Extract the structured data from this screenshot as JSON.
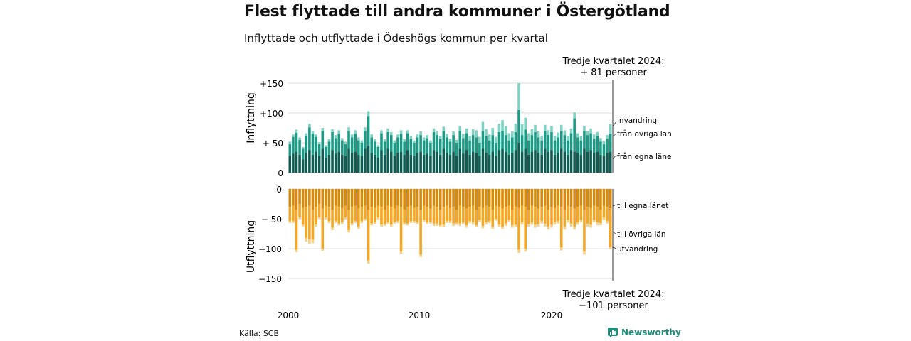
{
  "title": "Flest flyttade till andra kommuner i Östergötland",
  "subtitle": "Inflyttade och utflyttade i Ödeshögs kommun per kvartal",
  "source": "Källa: SCB",
  "brand": "Newsworthy",
  "colors": {
    "in_egna": "#0f5c52",
    "in_ovriga": "#1a9b86",
    "in_invandring": "#7fd3c2",
    "out_egna": "#d98a0a",
    "out_ovriga": "#f5a623",
    "out_utvandring": "#f7d08a",
    "brand": "#1f8f7a"
  },
  "chart_data": {
    "type": "bar",
    "stacked": true,
    "x_ticks": [
      "2000",
      "2010",
      "2020"
    ],
    "first_period": "2000Q1",
    "last_period": "2024Q3",
    "top_panel": {
      "ylabel": "Inflyttning",
      "ylim": [
        0,
        150
      ],
      "y_ticks": [
        0,
        50,
        100,
        150
      ],
      "y_tick_labels": [
        "0",
        "+ 50",
        "+100",
        "+150"
      ],
      "series": [
        {
          "name": "från egna läne",
          "values": [
            28,
            32,
            35,
            30,
            22,
            33,
            38,
            30,
            35,
            28,
            40,
            25,
            30,
            38,
            32,
            35,
            30,
            28,
            40,
            33,
            35,
            30,
            28,
            40,
            45,
            33,
            30,
            25,
            38,
            30,
            40,
            35,
            28,
            33,
            35,
            30,
            38,
            30,
            28,
            33,
            35,
            30,
            32,
            28,
            38,
            35,
            30,
            40,
            33,
            30,
            35,
            28,
            40,
            32,
            38,
            30,
            35,
            33,
            28,
            40,
            33,
            30,
            35,
            28,
            38,
            40,
            35,
            30,
            33,
            38,
            50,
            35,
            40,
            30,
            35,
            38,
            33,
            30,
            40,
            35,
            38,
            30,
            33,
            40,
            35,
            30,
            38,
            35,
            33,
            30,
            40,
            35,
            38,
            33,
            35,
            30,
            28,
            33,
            35
          ]
        },
        {
          "name": "från övriga län",
          "values": [
            20,
            28,
            32,
            25,
            18,
            28,
            38,
            35,
            25,
            20,
            30,
            18,
            22,
            30,
            26,
            30,
            24,
            20,
            30,
            26,
            30,
            24,
            22,
            30,
            50,
            26,
            22,
            18,
            28,
            22,
            28,
            28,
            22,
            26,
            30,
            22,
            28,
            26,
            22,
            26,
            28,
            24,
            26,
            22,
            30,
            28,
            26,
            30,
            26,
            22,
            28,
            22,
            30,
            26,
            28,
            24,
            28,
            26,
            22,
            30,
            28,
            24,
            28,
            22,
            30,
            30,
            28,
            24,
            26,
            30,
            55,
            28,
            32,
            24,
            28,
            30,
            26,
            24,
            30,
            28,
            30,
            24,
            26,
            30,
            28,
            24,
            28,
            56,
            26,
            24,
            30,
            28,
            28,
            24,
            26,
            22,
            20,
            24,
            30
          ]
        },
        {
          "name": "invandring",
          "values": [
            4,
            4,
            5,
            4,
            3,
            5,
            6,
            5,
            4,
            3,
            5,
            3,
            4,
            5,
            5,
            6,
            4,
            4,
            6,
            5,
            6,
            5,
            4,
            6,
            8,
            5,
            4,
            3,
            5,
            4,
            6,
            5,
            4,
            5,
            6,
            4,
            5,
            5,
            4,
            5,
            6,
            5,
            5,
            4,
            6,
            6,
            5,
            7,
            6,
            5,
            6,
            5,
            8,
            7,
            8,
            8,
            10,
            12,
            10,
            15,
            12,
            10,
            12,
            10,
            14,
            18,
            15,
            12,
            10,
            14,
            45,
            18,
            20,
            12,
            10,
            12,
            10,
            8,
            10,
            8,
            10,
            8,
            8,
            10,
            8,
            7,
            8,
            10,
            7,
            7,
            8,
            7,
            8,
            7,
            7,
            6,
            5,
            6,
            16
          ]
        }
      ]
    },
    "bottom_panel": {
      "ylabel": "Utflyttning",
      "ylim": [
        -150,
        0
      ],
      "y_ticks": [
        0,
        -50,
        -100,
        -150
      ],
      "y_tick_labels": [
        "0",
        "− 50",
        "−100",
        "−150"
      ],
      "series": [
        {
          "name": "till egna länet",
          "values": [
            -30,
            -28,
            -35,
            -25,
            -32,
            -30,
            -28,
            -35,
            -30,
            -25,
            -33,
            -28,
            -30,
            -35,
            -28,
            -30,
            -32,
            -28,
            -35,
            -30,
            -28,
            -33,
            -30,
            -28,
            -35,
            -30,
            -32,
            -28,
            -30,
            -35,
            -28,
            -30,
            -33,
            -28,
            -30,
            -35,
            -30,
            -28,
            -32,
            -30,
            -35,
            -28,
            -30,
            -33,
            -28,
            -30,
            -35,
            -30,
            -28,
            -32,
            -30,
            -35,
            -28,
            -30,
            -33,
            -30,
            -28,
            -35,
            -30,
            -32,
            -28,
            -30,
            -35,
            -28,
            -30,
            -33,
            -30,
            -28,
            -35,
            -30,
            -32,
            -28,
            -30,
            -35,
            -28,
            -30,
            -33,
            -30,
            -28,
            -35,
            -30,
            -32,
            -28,
            -30,
            -35,
            -28,
            -30,
            -33,
            -30,
            -28,
            -35,
            -30,
            -32,
            -28,
            -30,
            -35,
            -28,
            -30,
            -33
          ]
        },
        {
          "name": "till övriga län",
          "values": [
            -24,
            -26,
            -67,
            -22,
            -28,
            -52,
            -56,
            -50,
            -30,
            -22,
            -67,
            -20,
            -24,
            -30,
            -26,
            -28,
            -24,
            -20,
            -34,
            -28,
            -26,
            -30,
            -24,
            -22,
            -85,
            -28,
            -24,
            -20,
            -30,
            -24,
            -28,
            -30,
            -22,
            -26,
            -75,
            -22,
            -28,
            -26,
            -22,
            -26,
            -75,
            -24,
            -26,
            -22,
            -30,
            -28,
            -26,
            -30,
            -26,
            -22,
            -28,
            -22,
            -30,
            -26,
            -28,
            -24,
            -28,
            -26,
            -22,
            -30,
            -28,
            -24,
            -28,
            -22,
            -30,
            -30,
            -28,
            -24,
            -26,
            -30,
            -70,
            -28,
            -70,
            -24,
            -28,
            -30,
            -26,
            -24,
            -30,
            -28,
            -30,
            -24,
            -26,
            -68,
            -28,
            -24,
            -28,
            -30,
            -26,
            -24,
            -70,
            -28,
            -28,
            -24,
            -26,
            -22,
            -20,
            -24,
            -64
          ]
        },
        {
          "name": "utvandring",
          "values": [
            -3,
            -3,
            -4,
            -3,
            -3,
            -6,
            -8,
            -6,
            -3,
            -3,
            -4,
            -3,
            -3,
            -4,
            -3,
            -3,
            -3,
            -3,
            -4,
            -3,
            -3,
            -4,
            -3,
            -3,
            -5,
            -3,
            -3,
            -3,
            -3,
            -3,
            -3,
            -4,
            -3,
            -3,
            -4,
            -3,
            -3,
            -3,
            -3,
            -3,
            -4,
            -3,
            -3,
            -3,
            -4,
            -4,
            -3,
            -4,
            -3,
            -3,
            -4,
            -3,
            -4,
            -3,
            -4,
            -3,
            -4,
            -3,
            -3,
            -4,
            -4,
            -3,
            -4,
            -3,
            -4,
            -4,
            -4,
            -3,
            -4,
            -4,
            -5,
            -4,
            -5,
            -4,
            -4,
            -5,
            -4,
            -4,
            -5,
            -5,
            -5,
            -4,
            -4,
            -5,
            -5,
            -4,
            -5,
            -5,
            -4,
            -4,
            -5,
            -5,
            -5,
            -4,
            -5,
            -4,
            -4,
            -4,
            -4
          ]
        }
      ]
    },
    "annotations": {
      "top": [
        "Tredje kvartalet 2024:",
        "+ 81 personer"
      ],
      "bottom": [
        "Tredje kvartalet 2024:",
        "−101 personer"
      ]
    },
    "legend_labels_in": [
      "invandring",
      "från övriga län",
      "från egna läne"
    ],
    "legend_labels_out": [
      "till egna länet",
      "till övriga län",
      "utvandring"
    ],
    "grid": true,
    "legend_position": "right"
  }
}
